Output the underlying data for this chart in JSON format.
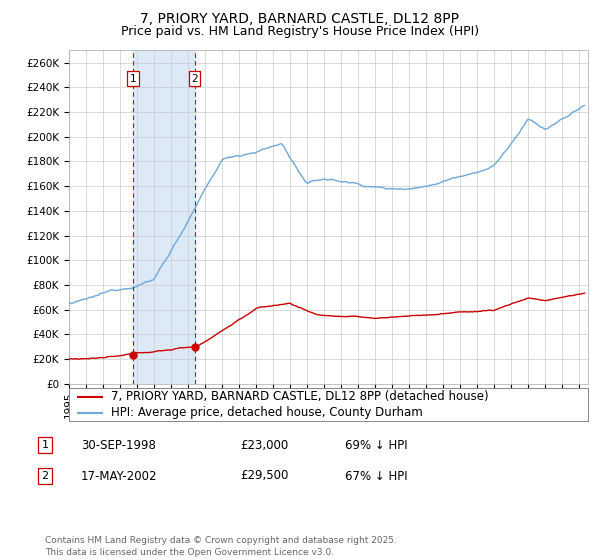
{
  "title": "7, PRIORY YARD, BARNARD CASTLE, DL12 8PP",
  "subtitle": "Price paid vs. HM Land Registry's House Price Index (HPI)",
  "legend_line1": "7, PRIORY YARD, BARNARD CASTLE, DL12 8PP (detached house)",
  "legend_line2": "HPI: Average price, detached house, County Durham",
  "footer": "Contains HM Land Registry data © Crown copyright and database right 2025.\nThis data is licensed under the Open Government Licence v3.0.",
  "table_rows": [
    {
      "num": "1",
      "date": "30-SEP-1998",
      "price": "£23,000",
      "pct": "69% ↓ HPI"
    },
    {
      "num": "2",
      "date": "17-MAY-2002",
      "price": "£29,500",
      "pct": "67% ↓ HPI"
    }
  ],
  "sale1_year": 1998.75,
  "sale2_year": 2002.38,
  "sale1_price": 23000,
  "sale2_price": 29500,
  "hpi_color": "#6fa8dc",
  "price_color": "#cc0000",
  "shade_color": "#dce9f7",
  "vline_color": "#cc0000",
  "background_color": "#ffffff",
  "grid_color": "#cccccc",
  "ylim": [
    0,
    270000
  ],
  "yticks": [
    0,
    20000,
    40000,
    60000,
    80000,
    100000,
    120000,
    140000,
    160000,
    180000,
    200000,
    220000,
    240000,
    260000
  ],
  "xmin": 1995.0,
  "xmax": 2025.5,
  "title_fontsize": 10,
  "subtitle_fontsize": 9,
  "tick_fontsize": 7.5,
  "legend_fontsize": 8.5,
  "footer_fontsize": 6.5
}
